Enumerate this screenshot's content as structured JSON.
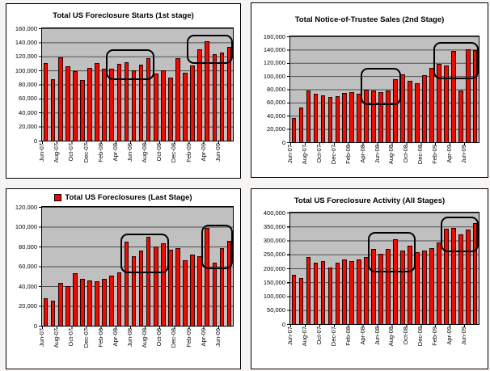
{
  "page": {
    "background": "#f7f4f4",
    "panel_background": "#ffffff"
  },
  "colors": {
    "bar": "#ee0b00",
    "bar_border": "#2a0000",
    "plot_background": "#c0c0c0",
    "gridline": "#4d4d4d",
    "panel_border": "#000000",
    "annotation_border": "#000000",
    "legend_marker": "#ff0000"
  },
  "x_tick_labels": [
    "Jun-07",
    "Aug-07",
    "Oct-07",
    "Dec-07",
    "Feb-08",
    "Apr-08",
    "Jun-08",
    "Aug-08",
    "Oct-08",
    "Dec-08",
    "Feb-09",
    "Apr-09",
    "Jun-09"
  ],
  "chart_data": [
    {
      "type": "bar",
      "title": "Total US Foreclosure Starts (1st stage)",
      "has_legend_swatch": false,
      "ymax": 160000,
      "y_intervals": 8,
      "ytick_labels": [
        "160,000",
        "140,000",
        "120,000",
        "100,000",
        "80,000",
        "60,000",
        "40,000",
        "20,000",
        "0"
      ],
      "categories": [
        "Jun-07",
        "Jul-07",
        "Aug-07",
        "Sep-07",
        "Oct-07",
        "Nov-07",
        "Dec-07",
        "Jan-08",
        "Feb-08",
        "Mar-08",
        "Apr-08",
        "May-08",
        "Jun-08",
        "Jul-08",
        "Aug-08",
        "Sep-08",
        "Oct-08",
        "Nov-08",
        "Dec-08",
        "Jan-09",
        "Feb-09",
        "Mar-09",
        "Apr-09",
        "May-09",
        "Jun-09",
        "Jul-09"
      ],
      "values": [
        111000,
        87000,
        119000,
        106000,
        99000,
        86000,
        104000,
        111000,
        103000,
        102000,
        109000,
        112000,
        100000,
        108000,
        117000,
        96000,
        100000,
        90000,
        118000,
        97000,
        107000,
        130000,
        142000,
        123000,
        125000,
        134000
      ],
      "annotation_boxes": [
        {
          "from_index": 9,
          "to_index": 14,
          "value_top": 130000,
          "value_bottom": 86000
        },
        {
          "from_index": 20,
          "to_index": 25,
          "value_top": 151000,
          "value_bottom": 109000
        }
      ]
    },
    {
      "type": "bar",
      "title": "Total Notice-of-Trustee Sales (2nd Stage)",
      "has_legend_swatch": false,
      "ymax": 160000,
      "y_intervals": 8,
      "ytick_labels": [
        "160,000",
        "140,000",
        "120,000",
        "100,000",
        "80,000",
        "60,000",
        "40,000",
        "20,000",
        "0"
      ],
      "categories": [
        "Jun-07",
        "Jul-07",
        "Aug-07",
        "Sep-07",
        "Oct-07",
        "Nov-07",
        "Dec-07",
        "Jan-08",
        "Feb-08",
        "Mar-08",
        "Apr-08",
        "May-08",
        "Jun-08",
        "Jul-08",
        "Aug-08",
        "Sep-08",
        "Oct-08",
        "Nov-08",
        "Dec-08",
        "Jan-09",
        "Feb-09",
        "Mar-09",
        "Apr-09",
        "May-09",
        "Jun-09",
        "Jul-09"
      ],
      "values": [
        37000,
        52000,
        78000,
        73000,
        71000,
        69000,
        70000,
        75000,
        76000,
        73000,
        80000,
        78000,
        76000,
        78000,
        95000,
        103000,
        93000,
        89000,
        101000,
        112000,
        118000,
        116000,
        138000,
        78000,
        140000,
        139000
      ],
      "annotation_boxes": [
        {
          "from_index": 10,
          "to_index": 14,
          "value_top": 112000,
          "value_bottom": 56000
        },
        {
          "from_index": 20,
          "to_index": 25,
          "value_top": 152000,
          "value_bottom": 95000
        }
      ]
    },
    {
      "type": "bar",
      "title": "Total US Foreclosures (Last Stage)",
      "has_legend_swatch": true,
      "ymax": 120000,
      "y_intervals": 6,
      "ytick_labels": [
        "120,000",
        "100,000",
        "80,000",
        "60,000",
        "40,000",
        "20,000",
        "0"
      ],
      "categories": [
        "Jun-07",
        "Jul-07",
        "Aug-07",
        "Sep-07",
        "Oct-07",
        "Nov-07",
        "Dec-07",
        "Jan-08",
        "Feb-08",
        "Mar-08",
        "Apr-08",
        "May-08",
        "Jun-08",
        "Jul-08",
        "Aug-08",
        "Sep-08",
        "Oct-08",
        "Nov-08",
        "Dec-08",
        "Jan-09",
        "Feb-09",
        "Mar-09",
        "Apr-09",
        "May-09",
        "Jun-09",
        "Jul-09"
      ],
      "values": [
        28000,
        25000,
        43000,
        40000,
        53000,
        47000,
        46000,
        45000,
        47000,
        51000,
        54000,
        85000,
        70000,
        76000,
        90000,
        80000,
        83000,
        77000,
        78000,
        66000,
        72000,
        70000,
        99000,
        64000,
        78000,
        86000
      ],
      "annotation_boxes": [
        {
          "from_index": 11,
          "to_index": 16,
          "value_top": 93000,
          "value_bottom": 53000
        },
        {
          "from_index": 22,
          "to_index": 25,
          "value_top": 102000,
          "value_bottom": 57000
        }
      ]
    },
    {
      "type": "bar",
      "title": "Total US Foreclosure Activity (All Stages)",
      "has_legend_swatch": false,
      "ymax": 400000,
      "y_intervals": 8,
      "ytick_labels": [
        "400,000",
        "350,000",
        "300,000",
        "250,000",
        "200,000",
        "150,000",
        "100,000",
        "50,000",
        "0"
      ],
      "categories": [
        "Jun-07",
        "Jul-07",
        "Aug-07",
        "Sep-07",
        "Oct-07",
        "Nov-07",
        "Dec-07",
        "Jan-08",
        "Feb-08",
        "Mar-08",
        "Apr-08",
        "May-08",
        "Jun-08",
        "Jul-08",
        "Aug-08",
        "Sep-08",
        "Oct-08",
        "Nov-08",
        "Dec-08",
        "Jan-09",
        "Feb-09",
        "Mar-09",
        "Apr-09",
        "May-09",
        "Jun-09",
        "Jul-09"
      ],
      "values": [
        176000,
        164000,
        241000,
        219000,
        225000,
        202000,
        219000,
        233000,
        225000,
        233000,
        242000,
        271000,
        252000,
        270000,
        303000,
        264000,
        281000,
        257000,
        264000,
        273000,
        292000,
        341000,
        344000,
        323000,
        339000,
        361000
      ],
      "annotation_boxes": [
        {
          "from_index": 11,
          "to_index": 16,
          "value_top": 330000,
          "value_bottom": 186000
        },
        {
          "from_index": 21,
          "to_index": 25,
          "value_top": 386000,
          "value_bottom": 259000
        }
      ]
    }
  ]
}
